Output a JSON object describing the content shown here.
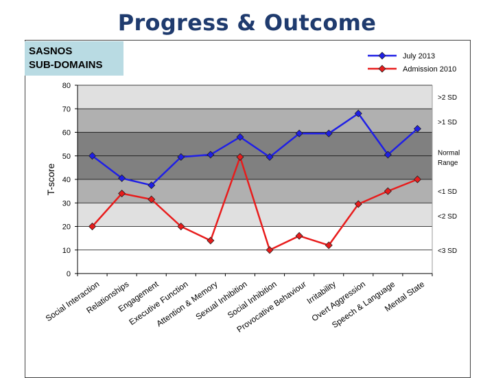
{
  "title": "Progress & Outcome",
  "box": {
    "line1": "SASNOS",
    "line2": "SUB-DOMAINS"
  },
  "colors": {
    "july": "#1f1fe6",
    "admission": "#e81c1c",
    "band_outer": "#e0e0e0",
    "band_mid": "#b0b0b0",
    "band_inner": "#808080"
  },
  "chart_data": {
    "type": "line",
    "ylabel": "T-score",
    "ylim": [
      0,
      80
    ],
    "yticks": [
      0,
      10,
      20,
      30,
      40,
      50,
      60,
      70,
      80
    ],
    "categories": [
      "Social Interaction",
      "Relationships",
      "Engagement",
      "Executive Function",
      "Attention & Memory",
      "Sexual Inhibition",
      "Social Inhibition",
      "Provocative Behaviour",
      "Irritability",
      "Overt Aggression",
      "Speech & Language",
      "Mental State"
    ],
    "series": [
      {
        "name": "July 2013",
        "values": [
          50,
          40.5,
          37.5,
          49.5,
          50.5,
          58,
          49.5,
          59.5,
          59.5,
          68,
          50.5,
          61.5
        ]
      },
      {
        "name": "Admission 2010",
        "values": [
          20,
          34,
          31.5,
          20,
          14,
          49.5,
          10,
          16,
          12,
          29.5,
          35,
          40
        ]
      }
    ],
    "bands": [
      {
        "from": 20,
        "to": 80,
        "shade": "band_outer"
      },
      {
        "from": 30,
        "to": 70,
        "shade": "band_mid"
      },
      {
        "from": 40,
        "to": 60,
        "shade": "band_inner"
      }
    ],
    "band_labels": [
      {
        "text": ">2 SD",
        "y": 75
      },
      {
        "text": ">1 SD",
        "y": 64.5
      },
      {
        "text": "Normal",
        "y": 51.5
      },
      {
        "text": "Range",
        "y": 47.3
      },
      {
        "text": "<1 SD",
        "y": 35
      },
      {
        "text": "<2 SD",
        "y": 24.5
      },
      {
        "text": "<3 SD",
        "y": 10
      }
    ]
  }
}
